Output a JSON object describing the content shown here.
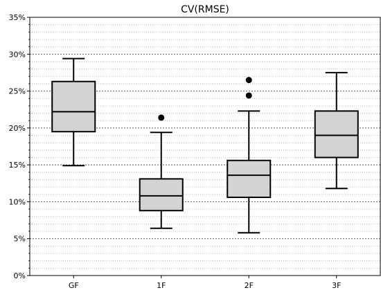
{
  "chart_data": {
    "type": "box",
    "title": "CV(RMSE)",
    "xlabel": "",
    "ylabel": "",
    "categories": [
      "GF",
      "1F",
      "2F",
      "3F"
    ],
    "ylim": [
      0,
      35
    ],
    "y_ticks": [
      "0%",
      "5%",
      "10%",
      "15%",
      "20%",
      "25%",
      "30%",
      "35%"
    ],
    "y_tick_values": [
      0,
      5,
      10,
      15,
      20,
      25,
      30,
      35
    ],
    "y_unit": "%",
    "grid": "horizontal dotted, major and minor",
    "legend": "none",
    "boxes": [
      {
        "category": "GF",
        "whisker_low": 14.9,
        "q1": 19.5,
        "median": 22.2,
        "q3": 26.3,
        "whisker_high": 29.4,
        "outliers": []
      },
      {
        "category": "1F",
        "whisker_low": 6.4,
        "q1": 8.8,
        "median": 10.8,
        "q3": 13.1,
        "whisker_high": 19.4,
        "outliers": [
          21.4
        ]
      },
      {
        "category": "2F",
        "whisker_low": 5.8,
        "q1": 10.6,
        "median": 13.6,
        "q3": 15.6,
        "whisker_high": 22.3,
        "outliers": [
          24.4,
          26.5
        ]
      },
      {
        "category": "3F",
        "whisker_low": 11.8,
        "q1": 16.0,
        "median": 19.0,
        "q3": 22.3,
        "whisker_high": 27.5,
        "outliers": []
      }
    ],
    "colors": {
      "box_fill": "#d3d3d3",
      "box_stroke": "#000000",
      "grid": "#888888",
      "axis": "#000000"
    }
  }
}
